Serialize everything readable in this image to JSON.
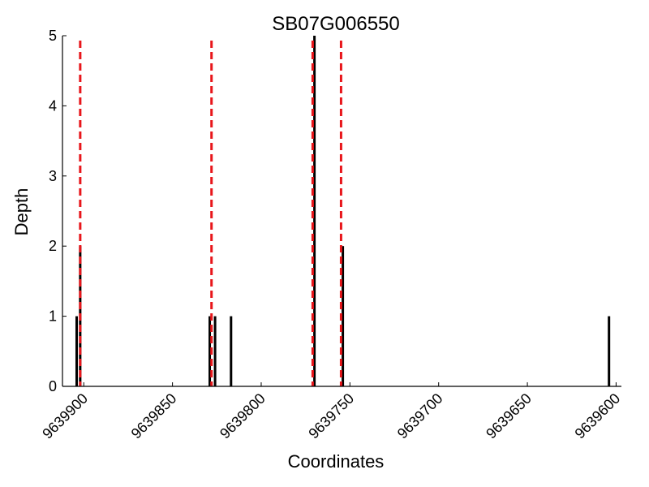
{
  "chart_data": {
    "type": "bar",
    "title": "SB07G006550",
    "xlabel": "Coordinates",
    "ylabel": "Depth",
    "x_reversed": true,
    "xlim": [
      9639912,
      9639597
    ],
    "ylim": [
      0,
      5
    ],
    "x_ticks": [
      9639900,
      9639850,
      9639800,
      9639750,
      9639700,
      9639650,
      9639600
    ],
    "x_tick_labels": [
      "9639900",
      "9639850",
      "9639800",
      "9639750",
      "9639700",
      "9639650",
      "9639600"
    ],
    "y_ticks": [
      0,
      1,
      2,
      3,
      4,
      5
    ],
    "y_tick_labels": [
      "0",
      "1",
      "2",
      "3",
      "4",
      "5"
    ],
    "grid": false,
    "bar_color": "#000000",
    "bars": [
      {
        "x": 9639904,
        "depth": 1
      },
      {
        "x": 9639902,
        "depth": 2
      },
      {
        "x": 9639829,
        "depth": 1
      },
      {
        "x": 9639826,
        "depth": 1
      },
      {
        "x": 9639817,
        "depth": 1
      },
      {
        "x": 9639770,
        "depth": 5
      },
      {
        "x": 9639754,
        "depth": 2
      },
      {
        "x": 9639604,
        "depth": 1
      }
    ],
    "marker_lines": {
      "color": "#e8161b",
      "style": "dashed",
      "x": [
        9639902,
        9639828,
        9639771,
        9639755
      ]
    }
  }
}
